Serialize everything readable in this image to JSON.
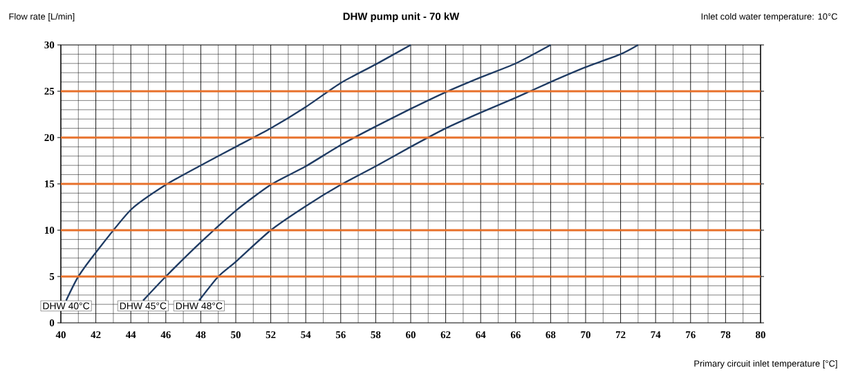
{
  "chart_data": {
    "type": "line",
    "title": "DHW pump unit - 70 kW",
    "ylabel": "Flow rate [L/min]",
    "xlabel": "Primary circuit inlet temperature [°C]",
    "annotations": [
      "Inlet cold water temperature: 10°C"
    ],
    "xlim": [
      40,
      80
    ],
    "xticks": [
      40,
      42,
      44,
      46,
      48,
      50,
      52,
      54,
      56,
      58,
      60,
      62,
      64,
      66,
      68,
      70,
      72,
      74,
      76,
      78,
      80
    ],
    "ylim": [
      0,
      30
    ],
    "yticks": [
      0,
      5,
      10,
      15,
      20,
      25,
      30
    ],
    "grid": true,
    "marker": "none",
    "line_style": "solid",
    "ref_lines": [
      {
        "axis": "y",
        "value": 5,
        "color": "#e8702a"
      },
      {
        "axis": "y",
        "value": 10,
        "color": "#e8702a"
      },
      {
        "axis": "y",
        "value": 15,
        "color": "#e8702a"
      },
      {
        "axis": "y",
        "value": 20,
        "color": "#e8702a"
      },
      {
        "axis": "y",
        "value": 25,
        "color": "#e8702a"
      }
    ],
    "series": [
      {
        "name": "DHW 40°C",
        "color": "#1f3b63",
        "x": [
          40.3,
          41,
          42,
          44,
          46,
          48,
          50,
          52,
          54,
          56,
          58,
          60
        ],
        "values": [
          2.4,
          5,
          7.6,
          12.2,
          14.9,
          17,
          19,
          21,
          23.3,
          25.9,
          27.9,
          30
        ]
      },
      {
        "name": "DHW 45°C",
        "color": "#1f3b63",
        "x": [
          44.7,
          46,
          48,
          50,
          52,
          54,
          56,
          58,
          60,
          62,
          64,
          66,
          68
        ],
        "values": [
          2.4,
          5,
          8.7,
          12.1,
          14.9,
          16.9,
          19.2,
          21.2,
          23.1,
          24.9,
          26.5,
          28,
          30
        ]
      },
      {
        "name": "DHW 48°C",
        "color": "#1f3b63",
        "x": [
          47.9,
          49,
          50,
          52,
          54,
          56,
          58,
          60,
          62,
          64,
          66,
          68,
          70,
          72,
          73
        ],
        "values": [
          2.4,
          5,
          6.6,
          10,
          12.6,
          14.9,
          16.9,
          19,
          21,
          22.7,
          24.3,
          26,
          27.6,
          29,
          30
        ]
      }
    ]
  }
}
